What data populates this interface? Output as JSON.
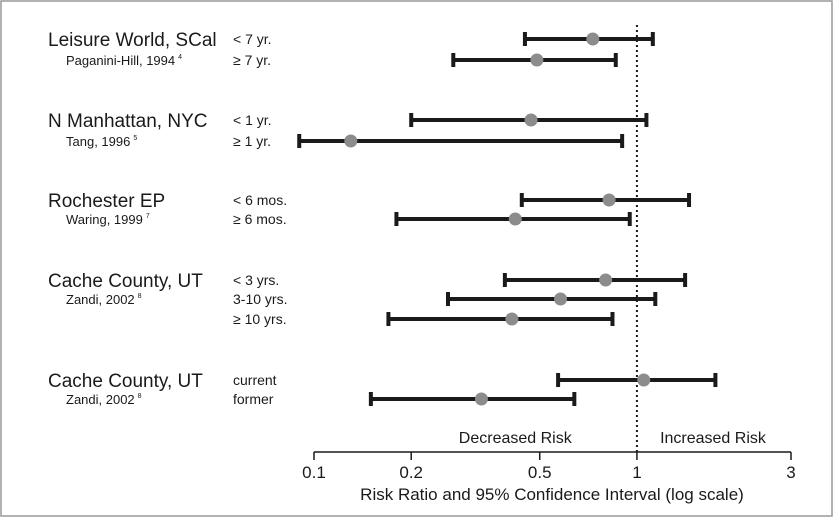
{
  "chart_data": {
    "type": "forest",
    "xlabel": "Risk Ratio and 95% Confidence Interval (log scale)",
    "x_scale": "log",
    "xlim": [
      0.1,
      3
    ],
    "xticks": [
      0.1,
      0.2,
      0.5,
      1,
      3
    ],
    "xtick_labels": [
      "0.1",
      "0.2",
      "0.5",
      "1",
      "3"
    ],
    "reference_line": 1,
    "regions": {
      "left": "Decreased Risk",
      "right": "Increased Risk"
    },
    "colors": {
      "bar": "#1a1a1a",
      "point": "#8c8c8c",
      "frame": "#999999"
    },
    "studies": [
      {
        "name": "Leisure World, SCal",
        "author": "Paganini-Hill, 1994",
        "ref": "4",
        "subgroups": [
          {
            "label": "< 7 yr.",
            "estimate": 0.73,
            "low": 0.45,
            "high": 1.12
          },
          {
            "label": "≥ 7 yr.",
            "estimate": 0.49,
            "low": 0.27,
            "high": 0.86
          }
        ]
      },
      {
        "name": "N Manhattan, NYC",
        "author": "Tang, 1996",
        "ref": "5",
        "subgroups": [
          {
            "label": "< 1 yr.",
            "estimate": 0.47,
            "low": 0.2,
            "high": 1.07
          },
          {
            "label": "≥ 1 yr.",
            "estimate": 0.13,
            "low": 0.09,
            "high": 0.9
          }
        ]
      },
      {
        "name": "Rochester EP",
        "author": "Waring, 1999",
        "ref": "7",
        "subgroups": [
          {
            "label": "< 6 mos.",
            "estimate": 0.82,
            "low": 0.44,
            "high": 1.45
          },
          {
            "label": "≥ 6 mos.",
            "estimate": 0.42,
            "low": 0.18,
            "high": 0.95
          }
        ]
      },
      {
        "name": "Cache County, UT",
        "author": "Zandi, 2002",
        "ref": "8",
        "subgroups": [
          {
            "label": "< 3 yrs.",
            "estimate": 0.8,
            "low": 0.39,
            "high": 1.41
          },
          {
            "label": "3-10 yrs.",
            "estimate": 0.58,
            "low": 0.26,
            "high": 1.14
          },
          {
            "label": "≥ 10 yrs.",
            "estimate": 0.41,
            "low": 0.17,
            "high": 0.84
          }
        ]
      },
      {
        "name": "Cache County, UT",
        "author": "Zandi, 2002",
        "ref": "8",
        "subgroups": [
          {
            "label": "current",
            "estimate": 1.05,
            "low": 0.57,
            "high": 1.75
          },
          {
            "label": "former",
            "estimate": 0.33,
            "low": 0.15,
            "high": 0.64
          }
        ]
      }
    ]
  }
}
